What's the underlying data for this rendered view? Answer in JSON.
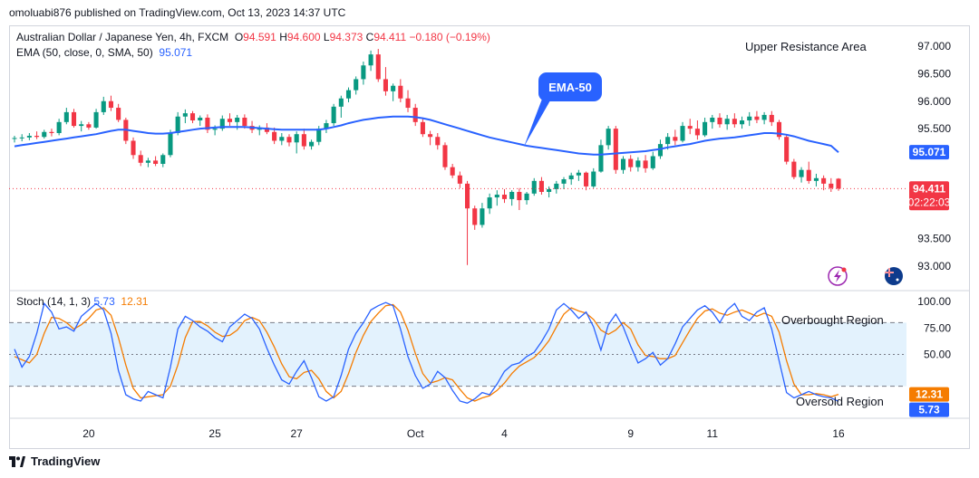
{
  "publisher_line": "omoluabi876 published on TradingView.com, Oct 13, 2023 14:37 UTC",
  "legend": {
    "symbol": "Australian Dollar / Japanese Yen, 4h, FXCM",
    "o_label": "O",
    "o_value": "94.591",
    "h_label": "H",
    "h_value": "94.600",
    "l_label": "L",
    "l_value": "94.373",
    "c_label": "C",
    "c_value": "94.411",
    "change": "−0.180 (−0.19%)",
    "ema_label": "EMA (50, close, 0, SMA, 50)",
    "ema_value": "95.071",
    "stoch_label": "Stoch (14, 1, 3)",
    "stoch_k": "5.73",
    "stoch_d": "12.31"
  },
  "annotations": {
    "upper_resistance": "Upper Resistance Area",
    "ema_callout": "EMA-50",
    "overbought": "Overbought Region",
    "oversold": "Oversold Region"
  },
  "footer": {
    "brand": "TradingView"
  },
  "colors": {
    "up": "#089981",
    "down": "#f23645",
    "ema": "#2962ff",
    "stoch_k": "#2962ff",
    "stoch_d": "#f57c00",
    "band": "#e3f2fd",
    "callout": "#2962ff",
    "axis_text": "#131722"
  },
  "chart_data": [
    {
      "type": "candlestick",
      "title": "Australian Dollar / Japanese Yen, 4h, FXCM",
      "ylim": [
        92.85,
        97.2
      ],
      "y_ticks": [
        "97.000",
        "96.500",
        "96.000",
        "95.500",
        "93.500",
        "93.000"
      ],
      "x_tick_labels": [
        {
          "label": "20",
          "index": 10
        },
        {
          "label": "25",
          "index": 27
        },
        {
          "label": "27",
          "index": 38
        },
        {
          "label": "Oct",
          "index": 54
        },
        {
          "label": "4",
          "index": 66
        },
        {
          "label": "9",
          "index": 83
        },
        {
          "label": "11",
          "index": 94
        },
        {
          "label": "16",
          "index": 111
        }
      ],
      "last_price": "94.411",
      "countdown": "02:22:03",
      "ema_price_label": "95.071",
      "candles": [
        [
          95.32,
          95.37,
          95.25,
          95.33
        ],
        [
          95.33,
          95.4,
          95.27,
          95.34
        ],
        [
          95.34,
          95.42,
          95.29,
          95.37
        ],
        [
          95.37,
          95.45,
          95.31,
          95.35
        ],
        [
          95.35,
          95.48,
          95.32,
          95.44
        ],
        [
          95.44,
          95.5,
          95.36,
          95.42
        ],
        [
          95.42,
          95.68,
          95.38,
          95.62
        ],
        [
          95.62,
          95.88,
          95.58,
          95.8
        ],
        [
          95.8,
          95.86,
          95.52,
          95.55
        ],
        [
          95.55,
          95.64,
          95.45,
          95.58
        ],
        [
          95.58,
          95.62,
          95.48,
          95.52
        ],
        [
          95.52,
          95.86,
          95.5,
          95.8
        ],
        [
          95.8,
          96.08,
          95.75,
          96.0
        ],
        [
          96.0,
          96.1,
          95.82,
          95.88
        ],
        [
          95.88,
          95.95,
          95.62,
          95.66
        ],
        [
          95.66,
          95.7,
          95.22,
          95.28
        ],
        [
          95.28,
          95.34,
          94.95,
          95.02
        ],
        [
          95.02,
          95.1,
          94.82,
          94.88
        ],
        [
          94.88,
          94.97,
          94.8,
          94.92
        ],
        [
          94.92,
          95.0,
          94.82,
          94.86
        ],
        [
          94.86,
          95.05,
          94.8,
          95.02
        ],
        [
          95.02,
          95.48,
          94.98,
          95.42
        ],
        [
          95.42,
          95.8,
          95.38,
          95.72
        ],
        [
          95.72,
          95.85,
          95.6,
          95.78
        ],
        [
          95.78,
          95.82,
          95.6,
          95.65
        ],
        [
          95.65,
          95.74,
          95.55,
          95.7
        ],
        [
          95.7,
          95.76,
          95.42,
          95.48
        ],
        [
          95.48,
          95.56,
          95.38,
          95.5
        ],
        [
          95.5,
          95.74,
          95.46,
          95.68
        ],
        [
          95.68,
          95.78,
          95.55,
          95.62
        ],
        [
          95.62,
          95.75,
          95.48,
          95.7
        ],
        [
          95.7,
          95.76,
          95.5,
          95.55
        ],
        [
          95.55,
          95.64,
          95.42,
          95.48
        ],
        [
          95.48,
          95.56,
          95.38,
          95.52
        ],
        [
          95.52,
          95.6,
          95.4,
          95.44
        ],
        [
          95.44,
          95.52,
          95.22,
          95.28
        ],
        [
          95.28,
          95.42,
          95.2,
          95.35
        ],
        [
          95.35,
          95.4,
          95.18,
          95.25
        ],
        [
          95.25,
          95.45,
          95.05,
          95.4
        ],
        [
          95.4,
          95.5,
          95.12,
          95.18
        ],
        [
          95.18,
          95.3,
          95.12,
          95.26
        ],
        [
          95.26,
          95.55,
          95.2,
          95.5
        ],
        [
          95.5,
          95.66,
          95.42,
          95.6
        ],
        [
          95.6,
          95.95,
          95.55,
          95.9
        ],
        [
          95.9,
          96.1,
          95.7,
          96.05
        ],
        [
          96.05,
          96.25,
          95.98,
          96.2
        ],
        [
          96.2,
          96.45,
          96.12,
          96.4
        ],
        [
          96.4,
          96.72,
          96.3,
          96.65
        ],
        [
          96.65,
          96.92,
          96.55,
          96.85
        ],
        [
          96.85,
          96.95,
          96.35,
          96.4
        ],
        [
          96.4,
          96.62,
          96.1,
          96.18
        ],
        [
          96.18,
          96.32,
          96.0,
          96.28
        ],
        [
          96.28,
          96.4,
          95.98,
          96.05
        ],
        [
          96.05,
          96.2,
          95.8,
          95.88
        ],
        [
          95.88,
          95.95,
          95.55,
          95.62
        ],
        [
          95.62,
          95.7,
          95.35,
          95.4
        ],
        [
          95.4,
          95.46,
          95.2,
          95.35
        ],
        [
          95.35,
          95.42,
          95.12,
          95.2
        ],
        [
          95.2,
          95.25,
          94.75,
          94.8
        ],
        [
          94.8,
          94.86,
          94.6,
          94.65
        ],
        [
          94.65,
          94.72,
          94.42,
          94.5
        ],
        [
          94.5,
          94.55,
          93.02,
          94.05
        ],
        [
          94.05,
          94.1,
          93.66,
          93.75
        ],
        [
          93.75,
          94.15,
          93.7,
          94.05
        ],
        [
          94.05,
          94.32,
          93.95,
          94.25
        ],
        [
          94.25,
          94.38,
          94.1,
          94.3
        ],
        [
          94.3,
          94.4,
          94.15,
          94.22
        ],
        [
          94.22,
          94.38,
          94.1,
          94.35
        ],
        [
          94.35,
          94.42,
          94.02,
          94.2
        ],
        [
          94.2,
          94.35,
          94.12,
          94.32
        ],
        [
          94.32,
          94.6,
          94.28,
          94.55
        ],
        [
          94.55,
          94.62,
          94.3,
          94.35
        ],
        [
          94.35,
          94.45,
          94.25,
          94.4
        ],
        [
          94.4,
          94.55,
          94.32,
          94.5
        ],
        [
          94.5,
          94.62,
          94.4,
          94.58
        ],
        [
          94.58,
          94.7,
          94.48,
          94.65
        ],
        [
          94.65,
          94.75,
          94.55,
          94.7
        ],
        [
          94.7,
          94.72,
          94.38,
          94.45
        ],
        [
          94.45,
          94.78,
          94.42,
          94.72
        ],
        [
          94.72,
          95.3,
          94.7,
          95.2
        ],
        [
          95.2,
          95.55,
          95.12,
          95.5
        ],
        [
          95.5,
          95.55,
          94.68,
          94.75
        ],
        [
          94.75,
          95.0,
          94.68,
          94.95
        ],
        [
          94.95,
          95.02,
          94.72,
          94.8
        ],
        [
          94.8,
          94.98,
          94.72,
          94.92
        ],
        [
          94.92,
          95.02,
          94.7,
          94.78
        ],
        [
          94.78,
          95.08,
          94.75,
          95.0
        ],
        [
          95.0,
          95.3,
          94.95,
          95.22
        ],
        [
          95.22,
          95.42,
          95.12,
          95.35
        ],
        [
          95.35,
          95.48,
          95.2,
          95.28
        ],
        [
          95.28,
          95.62,
          95.25,
          95.55
        ],
        [
          95.55,
          95.68,
          95.4,
          95.5
        ],
        [
          95.5,
          95.65,
          95.3,
          95.38
        ],
        [
          95.38,
          95.7,
          95.35,
          95.62
        ],
        [
          95.62,
          95.75,
          95.5,
          95.7
        ],
        [
          95.7,
          95.78,
          95.52,
          95.58
        ],
        [
          95.58,
          95.75,
          95.48,
          95.68
        ],
        [
          95.68,
          95.78,
          95.52,
          95.58
        ],
        [
          95.58,
          95.72,
          95.5,
          95.65
        ],
        [
          95.65,
          95.8,
          95.55,
          95.72
        ],
        [
          95.72,
          95.82,
          95.6,
          95.66
        ],
        [
          95.66,
          95.8,
          95.58,
          95.75
        ],
        [
          95.75,
          95.82,
          95.55,
          95.62
        ],
        [
          95.62,
          95.66,
          95.3,
          95.35
        ],
        [
          95.35,
          95.4,
          94.85,
          94.9
        ],
        [
          94.9,
          94.95,
          94.58,
          94.62
        ],
        [
          94.62,
          94.8,
          94.52,
          94.75
        ],
        [
          94.75,
          94.9,
          94.5,
          94.55
        ],
        [
          94.55,
          94.68,
          94.45,
          94.6
        ],
        [
          94.6,
          94.65,
          94.38,
          94.5
        ],
        [
          94.5,
          94.6,
          94.35,
          94.42
        ],
        [
          94.59,
          94.6,
          94.37,
          94.41
        ]
      ],
      "ema": [
        95.18,
        95.2,
        95.22,
        95.24,
        95.26,
        95.28,
        95.3,
        95.32,
        95.34,
        95.36,
        95.38,
        95.4,
        95.43,
        95.46,
        95.48,
        95.48,
        95.46,
        95.44,
        95.42,
        95.41,
        95.41,
        95.42,
        95.44,
        95.46,
        95.48,
        95.5,
        95.51,
        95.52,
        95.53,
        95.53,
        95.53,
        95.53,
        95.52,
        95.51,
        95.5,
        95.49,
        95.48,
        95.48,
        95.48,
        95.48,
        95.48,
        95.48,
        95.5,
        95.53,
        95.56,
        95.6,
        95.63,
        95.66,
        95.68,
        95.7,
        95.71,
        95.72,
        95.72,
        95.72,
        95.71,
        95.69,
        95.66,
        95.62,
        95.58,
        95.54,
        95.5,
        95.46,
        95.42,
        95.38,
        95.34,
        95.31,
        95.28,
        95.25,
        95.22,
        95.19,
        95.17,
        95.15,
        95.13,
        95.11,
        95.09,
        95.07,
        95.05,
        95.04,
        95.03,
        95.03,
        95.04,
        95.05,
        95.06,
        95.07,
        95.08,
        95.09,
        95.11,
        95.13,
        95.16,
        95.18,
        95.2,
        95.22,
        95.25,
        95.28,
        95.3,
        95.32,
        95.33,
        95.34,
        95.36,
        95.38,
        95.4,
        95.42,
        95.42,
        95.41,
        95.39,
        95.36,
        95.32,
        95.28,
        95.25,
        95.22,
        95.19,
        95.07
      ]
    },
    {
      "type": "line",
      "title": "Stoch (14, 1, 3)",
      "ylim": [
        -12,
        112
      ],
      "y_ticks": [
        "100.00",
        "75.00",
        "50.00"
      ],
      "levels": [
        80,
        50,
        20
      ],
      "last_k": "5.73",
      "last_d": "12.31",
      "series": [
        {
          "name": "%K",
          "values": [
            55,
            38,
            48,
            70,
            98,
            90,
            74,
            76,
            72,
            86,
            92,
            98,
            92,
            70,
            35,
            12,
            8,
            6,
            15,
            12,
            9,
            38,
            74,
            86,
            82,
            76,
            72,
            66,
            62,
            76,
            82,
            88,
            84,
            74,
            56,
            40,
            26,
            22,
            34,
            44,
            28,
            10,
            6,
            10,
            30,
            55,
            70,
            80,
            92,
            96,
            99,
            96,
            74,
            48,
            30,
            18,
            22,
            34,
            28,
            16,
            6,
            4,
            8,
            14,
            12,
            22,
            34,
            40,
            42,
            48,
            52,
            62,
            74,
            92,
            98,
            92,
            84,
            90,
            76,
            54,
            78,
            88,
            76,
            58,
            42,
            46,
            52,
            40,
            46,
            60,
            76,
            84,
            92,
            96,
            90,
            80,
            92,
            98,
            86,
            82,
            90,
            94,
            74,
            44,
            14,
            9,
            12,
            15,
            12,
            10,
            9,
            5.73
          ]
        },
        {
          "name": "%D",
          "values": [
            48,
            45,
            42,
            50,
            70,
            85,
            84,
            80,
            74,
            78,
            84,
            92,
            94,
            87,
            66,
            40,
            18,
            9,
            10,
            11,
            12,
            20,
            40,
            66,
            81,
            81,
            77,
            71,
            67,
            68,
            73,
            82,
            85,
            82,
            71,
            57,
            41,
            29,
            27,
            33,
            35,
            27,
            15,
            9,
            15,
            32,
            52,
            68,
            81,
            89,
            96,
            97,
            90,
            73,
            51,
            32,
            23,
            25,
            28,
            26,
            17,
            9,
            6,
            9,
            11,
            16,
            23,
            32,
            39,
            43,
            47,
            54,
            63,
            76,
            88,
            94,
            91,
            89,
            83,
            73,
            69,
            73,
            80,
            74,
            59,
            49,
            48,
            46,
            46,
            49,
            61,
            73,
            84,
            91,
            93,
            89,
            87,
            90,
            92,
            89,
            86,
            89,
            86,
            71,
            44,
            22,
            12,
            12,
            13,
            12,
            10,
            12.31
          ]
        }
      ]
    }
  ]
}
